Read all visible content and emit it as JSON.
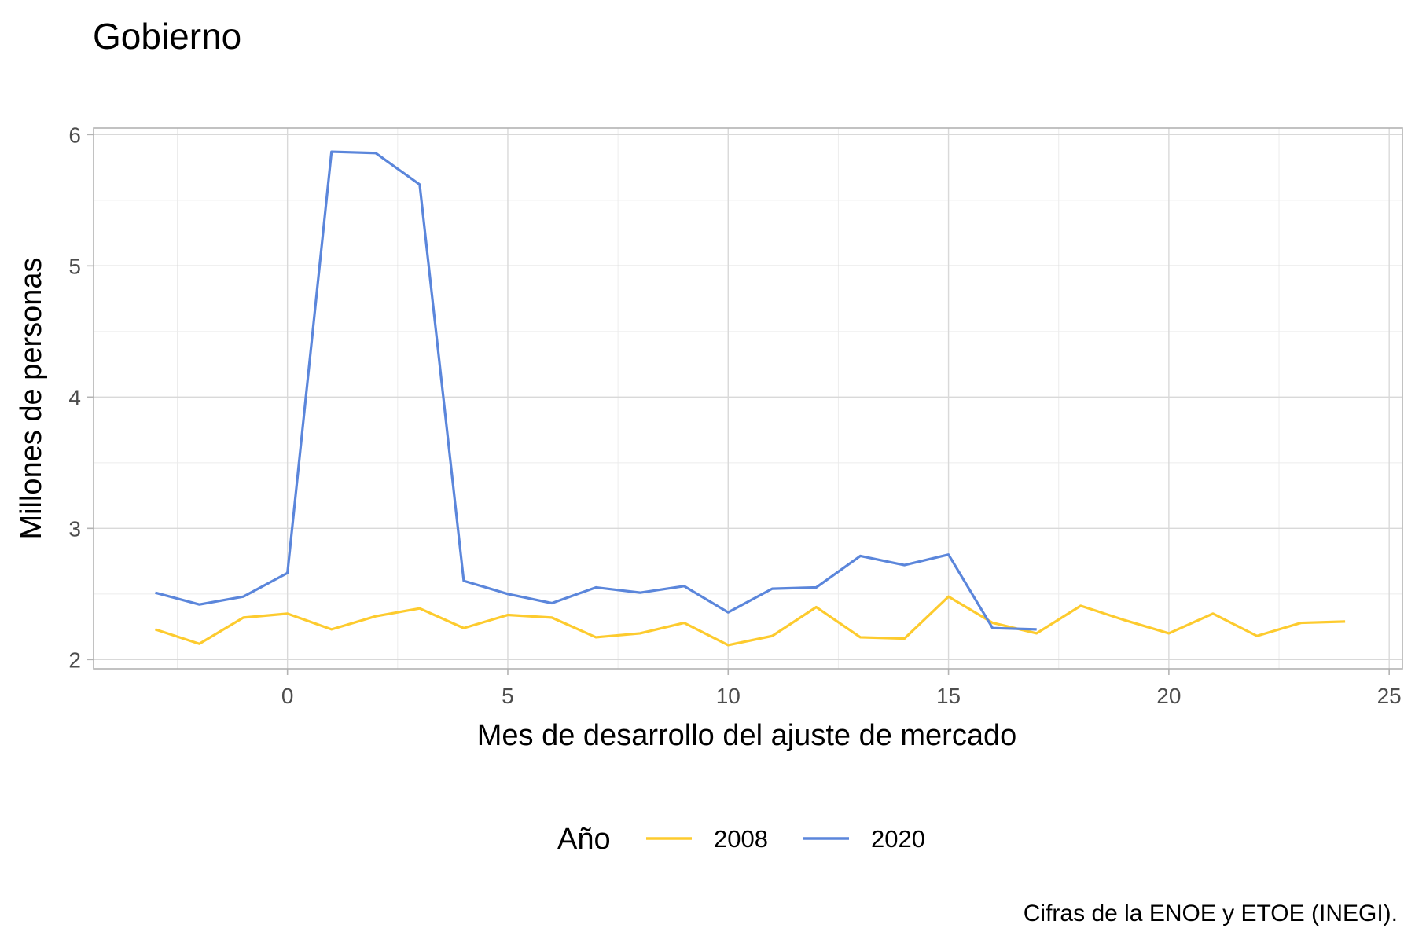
{
  "colors": {
    "series_2008": "#FDCB2E",
    "series_2020": "#5B86DB",
    "grid": "#D9D9D9",
    "border": "#B3B3B3"
  },
  "chart_data": {
    "type": "line",
    "title": "Gobierno",
    "xlabel": "Mes de desarrollo del ajuste de mercado",
    "ylabel": "Millones de personas",
    "caption": "Cifras de la ENOE y ETOE (INEGI).",
    "xlim": [
      -4.4,
      25.3
    ],
    "ylim": [
      1.93,
      6.05
    ],
    "xticks": [
      0,
      5,
      10,
      15,
      20,
      25
    ],
    "yticks": [
      2,
      3,
      4,
      5,
      6
    ],
    "grid": true,
    "legend": {
      "title": "Año",
      "position": "bottom"
    },
    "series": [
      {
        "name": "2008",
        "color": "#FDCB2E",
        "x": [
          -3,
          -2,
          -1,
          0,
          1,
          2,
          3,
          4,
          5,
          6,
          7,
          8,
          9,
          10,
          11,
          12,
          13,
          14,
          15,
          16,
          17,
          18,
          19,
          20,
          21,
          22,
          23,
          24
        ],
        "y": [
          2.23,
          2.12,
          2.32,
          2.35,
          2.23,
          2.33,
          2.39,
          2.24,
          2.34,
          2.32,
          2.17,
          2.2,
          2.28,
          2.11,
          2.18,
          2.4,
          2.17,
          2.16,
          2.48,
          2.28,
          2.2,
          2.41,
          2.3,
          2.2,
          2.35,
          2.18,
          2.28,
          2.29
        ]
      },
      {
        "name": "2020",
        "color": "#5B86DB",
        "x": [
          -3,
          -2,
          -1,
          0,
          1,
          2,
          3,
          4,
          5,
          6,
          7,
          8,
          9,
          10,
          11,
          12,
          13,
          14,
          15,
          16,
          17
        ],
        "y": [
          2.51,
          2.42,
          2.48,
          2.66,
          5.87,
          5.86,
          5.62,
          2.6,
          2.5,
          2.43,
          2.55,
          2.51,
          2.56,
          2.36,
          2.54,
          2.55,
          2.79,
          2.72,
          2.8,
          2.24,
          2.23
        ]
      }
    ]
  }
}
